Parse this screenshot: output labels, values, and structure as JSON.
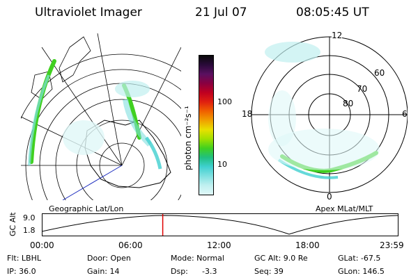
{
  "header": {
    "title": "Ultraviolet Imager",
    "date": "21 Jul 07",
    "time": "08:05:45 UT"
  },
  "geo_panel": {
    "label": "Geographic Lat/Lon"
  },
  "apex_panel": {
    "label": "Apex MLat/MLT",
    "mlt_labels": [
      "12",
      "18",
      "6",
      "0"
    ],
    "mlat_labels": [
      "60",
      "70",
      "80"
    ]
  },
  "colorbar": {
    "unit_label": "photon cm⁻²s⁻¹",
    "ticks": [
      "100",
      "10"
    ],
    "colors": [
      "#0a0a0a",
      "#2a0a3a",
      "#5a1060",
      "#8a0040",
      "#c00020",
      "#e02010",
      "#f06000",
      "#f0a000",
      "#e8e000",
      "#a0e000",
      "#40d020",
      "#20c080",
      "#40d0d0",
      "#80e0e0",
      "#c0f0f0",
      "#e0f8f8"
    ]
  },
  "altitude_strip": {
    "ylabel": "GC Alt",
    "y_ticks": [
      "9.0",
      "1.8"
    ],
    "x_ticks": [
      "00:00",
      "06:00",
      "12:00",
      "18:00",
      "23:59"
    ],
    "current_marker_fraction": 0.339,
    "marker_color": "#e00000"
  },
  "status": {
    "filter": "Flt: LBHL",
    "door": "Door: Open",
    "mode": "Mode: Normal",
    "gc_alt": "GC Alt: 9.0 Re",
    "glat": "GLat: -67.5",
    "ip": "IP: 36.0",
    "gain": "Gain: 14",
    "dsp_label": "Dsp:",
    "dsp_value": "-3.3",
    "seq": "Seq: 39",
    "glon": "GLon: 146.5"
  }
}
